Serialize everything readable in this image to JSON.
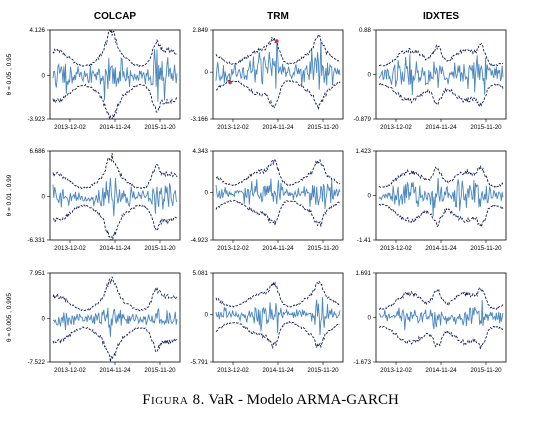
{
  "caption": {
    "label": "Figura 8.",
    "text": "VaR - Modelo ARMA-GARCH"
  },
  "colors": {
    "returns": "#4a86bf",
    "bounds": "#0d1a5c",
    "exceed": "#e8262c",
    "frame": "#000000"
  },
  "chart_data": {
    "type": "line",
    "series_names": [
      "returns",
      "VaR upper",
      "VaR lower",
      "exceedances"
    ],
    "columns": [
      "COLCAP",
      "TRM",
      "IDXTES"
    ],
    "rows": [
      "θ = 0.05 , 0.95",
      "θ = 0.01 , 0.99",
      "θ = 0.005 , 0.995"
    ],
    "x_ticks": [
      "2013-12-02",
      "2014-11-24",
      "2015-11-20"
    ],
    "panels": [
      {
        "row": 0,
        "col": 0,
        "ylim": [
          -3.923,
          4.126
        ],
        "ytick_labels": [
          "4.126",
          "0",
          "-3.923"
        ],
        "upper": 1.55,
        "lower": -1.6,
        "vol": 0.55,
        "shift": 0.2,
        "seed": 11
      },
      {
        "row": 0,
        "col": 1,
        "ylim": [
          -3.166,
          2.849
        ],
        "ytick_labels": [
          "2.849",
          "0",
          "-3.166"
        ],
        "upper": 1.05,
        "lower": -1.05,
        "vol": 0.45,
        "shift": 0.45,
        "seed": 23
      },
      {
        "row": 0,
        "col": 2,
        "ylim": [
          -0.879,
          0.88
        ],
        "ytick_labels": [
          "0.88",
          "0",
          "-0.879"
        ],
        "upper": 0.33,
        "lower": -0.35,
        "vol": 0.12,
        "shift": 0.7,
        "seed": 37
      },
      {
        "row": 1,
        "col": 0,
        "ylim": [
          -6.331,
          6.686
        ],
        "ytick_labels": [
          "6.686",
          "0",
          "-6.331"
        ],
        "upper": 2.3,
        "lower": -2.4,
        "vol": 0.75,
        "shift": 0.2,
        "seed": 41
      },
      {
        "row": 1,
        "col": 1,
        "ylim": [
          -4.923,
          4.343
        ],
        "ytick_labels": [
          "4.343",
          "0",
          "-4.923"
        ],
        "upper": 1.5,
        "lower": -1.5,
        "vol": 0.5,
        "shift": 0.45,
        "seed": 53
      },
      {
        "row": 1,
        "col": 2,
        "ylim": [
          -1.41,
          1.423
        ],
        "ytick_labels": [
          "1.423",
          "0",
          "-1.41"
        ],
        "upper": 0.52,
        "lower": -0.54,
        "vol": 0.17,
        "shift": 0.7,
        "seed": 67
      },
      {
        "row": 2,
        "col": 0,
        "ylim": [
          -7.522,
          7.951
        ],
        "ytick_labels": [
          "7.951",
          "0",
          "-7.522"
        ],
        "upper": 2.7,
        "lower": -2.8,
        "vol": 0.75,
        "shift": 0.2,
        "seed": 71
      },
      {
        "row": 2,
        "col": 1,
        "ylim": [
          -5.791,
          5.081
        ],
        "ytick_labels": [
          "5.081",
          "0",
          "-5.791"
        ],
        "upper": 1.75,
        "lower": -1.75,
        "vol": 0.5,
        "shift": 0.45,
        "seed": 83
      },
      {
        "row": 2,
        "col": 2,
        "ylim": [
          -1.673,
          1.691
        ],
        "ytick_labels": [
          "1.691",
          "0",
          "-1.673"
        ],
        "upper": 0.62,
        "lower": -0.64,
        "vol": 0.17,
        "shift": 0.7,
        "seed": 97
      }
    ]
  }
}
